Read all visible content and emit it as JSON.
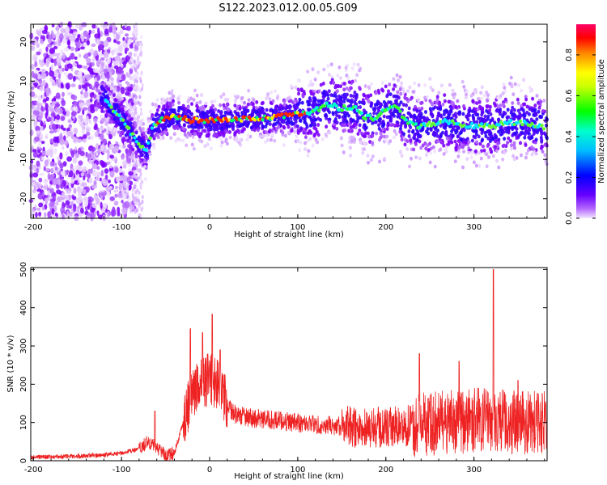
{
  "figure": {
    "title": "S122.2023.012.00.05.G09"
  },
  "colors": {
    "bg": "#ffffff",
    "snr_line": "#ee2222",
    "colormap": [
      "#e6ccff",
      "#7a00ff",
      "#0000ff",
      "#00e5ff",
      "#00ff00",
      "#ffff00",
      "#ff0000",
      "#ff0066"
    ]
  },
  "chart_data": [
    {
      "type": "heatmap",
      "xlabel": "Height of straight line (km)",
      "ylabel": "Frequency (Hz)",
      "xlim": [
        -203,
        383
      ],
      "ylim": [
        -25,
        24.5
      ],
      "xticks": [
        -200,
        -100,
        0,
        100,
        200,
        300
      ],
      "yticks": [
        -20,
        -10,
        0,
        10,
        20
      ],
      "colorbar": {
        "label": "Normalized spectral amplitude",
        "range": [
          0,
          0.95
        ],
        "ticks": [
          0.0,
          0.2,
          0.4,
          0.6,
          0.8
        ]
      },
      "ridge": {
        "x": [
          -120,
          -110,
          -100,
          -90,
          -80,
          -72,
          -65,
          -55,
          -40,
          -20,
          0,
          20,
          40,
          60,
          80,
          100,
          120,
          135,
          150,
          165,
          175,
          185,
          200,
          210,
          220,
          235,
          250,
          265,
          280,
          300,
          320,
          340,
          360,
          380
        ],
        "y": [
          6,
          3,
          0,
          -3,
          -6,
          -8,
          -2,
          0,
          1,
          0,
          0,
          0,
          0.5,
          0.5,
          1,
          1.5,
          2.5,
          4,
          3,
          3.5,
          1,
          0.5,
          2.5,
          4,
          0.5,
          -1.5,
          -1,
          0,
          -1,
          -1.5,
          -1.5,
          -0.5,
          -0.5,
          -2
        ]
      }
    },
    {
      "type": "line",
      "xlabel": "Height of straight line (km)",
      "ylabel": "SNR (10 * v/v)",
      "xlim": [
        -203,
        383
      ],
      "ylim": [
        0,
        505
      ],
      "xticks": [
        -200,
        -100,
        0,
        100,
        200,
        300
      ],
      "yticks": [
        0,
        100,
        200,
        300,
        400,
        500
      ],
      "series": [
        {
          "x": [
            -203,
            -180,
            -150,
            -120,
            -100,
            -80,
            -70,
            -60,
            -50,
            -40,
            -30,
            -20,
            -10,
            0,
            10,
            20,
            30,
            50,
            80,
            100,
            120,
            150,
            180,
            200,
            220,
            240,
            260,
            280,
            300,
            310,
            320,
            330,
            350,
            370,
            383
          ],
          "values": [
            10,
            10,
            12,
            15,
            20,
            30,
            50,
            35,
            15,
            20,
            100,
            180,
            200,
            215,
            200,
            140,
            120,
            110,
            105,
            100,
            95,
            90,
            85,
            85,
            90,
            95,
            100,
            100,
            105,
            110,
            110,
            105,
            100,
            100,
            100
          ],
          "spikes": [
            {
              "x": -62,
              "value": 130
            },
            {
              "x": -22,
              "value": 345
            },
            {
              "x": -8,
              "value": 335
            },
            {
              "x": 3,
              "value": 383
            },
            {
              "x": 12,
              "value": 290
            },
            {
              "x": 238,
              "value": 280
            },
            {
              "x": 283,
              "value": 260
            },
            {
              "x": 322,
              "value": 500
            },
            {
              "x": 350,
              "value": 210
            }
          ]
        }
      ]
    }
  ]
}
